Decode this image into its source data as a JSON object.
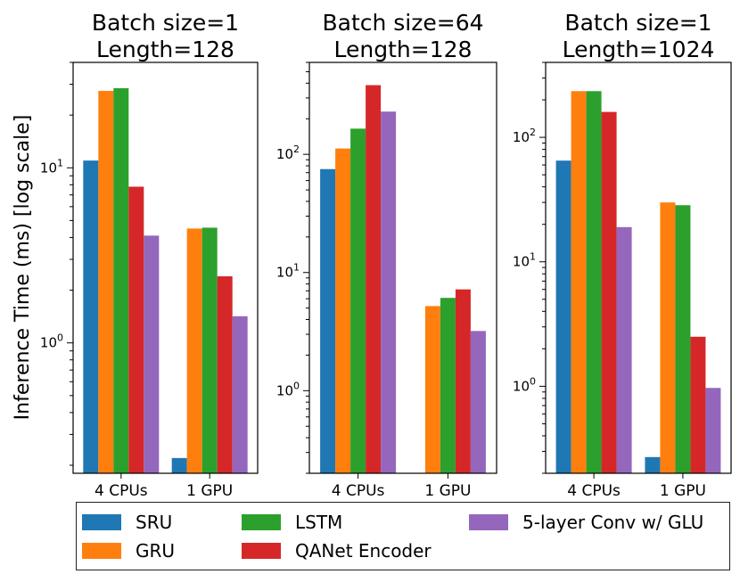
{
  "chart_data": [
    {
      "type": "bar",
      "title": "Batch size=1\nLength=128",
      "ylabel": "Inference Time (ms) [log scale]",
      "yscale": "log",
      "ylim": [
        0.18,
        40
      ],
      "yticks": [
        {
          "value": 1,
          "label": "10^0"
        },
        {
          "value": 10,
          "label": "10^1"
        }
      ],
      "categories": [
        "4 CPUs",
        "1 GPU"
      ],
      "series": [
        {
          "name": "SRU",
          "values": [
            11,
            0.22
          ]
        },
        {
          "name": "GRU",
          "values": [
            27.5,
            4.5
          ]
        },
        {
          "name": "LSTM",
          "values": [
            28.5,
            4.55
          ]
        },
        {
          "name": "QANet Encoder",
          "values": [
            7.8,
            2.4
          ]
        },
        {
          "name": "5-layer Conv w/ GLU",
          "values": [
            4.1,
            1.42
          ]
        }
      ]
    },
    {
      "type": "bar",
      "title": "Batch size=64\nLength=128",
      "ylabel": "",
      "yscale": "log",
      "ylim": [
        0.2,
        600
      ],
      "yticks": [
        {
          "value": 1,
          "label": "10^0"
        },
        {
          "value": 10,
          "label": "10^1"
        },
        {
          "value": 100,
          "label": "10^2"
        }
      ],
      "categories": [
        "4 CPUs",
        "1 GPU"
      ],
      "series": [
        {
          "name": "SRU",
          "values": [
            75,
            0.2
          ]
        },
        {
          "name": "GRU",
          "values": [
            112,
            5.2
          ]
        },
        {
          "name": "LSTM",
          "values": [
            165,
            6.1
          ]
        },
        {
          "name": "QANet Encoder",
          "values": [
            385,
            7.2
          ]
        },
        {
          "name": "5-layer Conv w/ GLU",
          "values": [
            230,
            3.2
          ]
        }
      ]
    },
    {
      "type": "bar",
      "title": "Batch size=1\nLength=1024",
      "ylabel": "",
      "yscale": "log",
      "ylim": [
        0.2,
        400
      ],
      "yticks": [
        {
          "value": 1,
          "label": "10^0"
        },
        {
          "value": 10,
          "label": "10^1"
        },
        {
          "value": 100,
          "label": "10^2"
        }
      ],
      "categories": [
        "4 CPUs",
        "1 GPU"
      ],
      "series": [
        {
          "name": "SRU",
          "values": [
            65,
            0.27
          ]
        },
        {
          "name": "GRU",
          "values": [
            235,
            30
          ]
        },
        {
          "name": "LSTM",
          "values": [
            235,
            28.5
          ]
        },
        {
          "name": "QANet Encoder",
          "values": [
            160,
            2.5
          ]
        },
        {
          "name": "5-layer Conv w/ GLU",
          "values": [
            19,
            0.97
          ]
        }
      ]
    }
  ],
  "legend": {
    "items": [
      {
        "name": "SRU",
        "color": "#1f77b4"
      },
      {
        "name": "GRU",
        "color": "#ff7f0e"
      },
      {
        "name": "LSTM",
        "color": "#2ca02c"
      },
      {
        "name": "QANet Encoder",
        "color": "#d62728"
      },
      {
        "name": "5-layer Conv w/ GLU",
        "color": "#9467bd"
      }
    ]
  },
  "colors": [
    "#1f77b4",
    "#ff7f0e",
    "#2ca02c",
    "#d62728",
    "#9467bd"
  ]
}
